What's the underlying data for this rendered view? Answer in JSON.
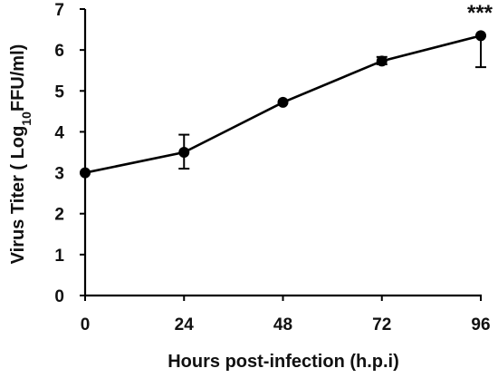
{
  "chart_data": {
    "type": "line",
    "x": [
      0,
      24,
      48,
      72,
      96
    ],
    "series": [
      {
        "values": [
          3.0,
          3.5,
          4.72,
          5.73,
          6.35
        ],
        "error_low": [
          3.0,
          3.1,
          4.72,
          5.65,
          5.58
        ],
        "error_high": [
          3.0,
          3.93,
          4.72,
          5.83,
          6.35
        ]
      }
    ],
    "xticks": [
      "0",
      "24",
      "48",
      "72",
      "96"
    ],
    "yticks": [
      "0",
      "1",
      "2",
      "3",
      "4",
      "5",
      "6",
      "7"
    ],
    "xlabel": "Hours post-infection (h.p.i)",
    "ylabel_main": "Virus Titer ( Log",
    "ylabel_sub": "10",
    "ylabel_tail": "FFU/ml)",
    "xlim": [
      0,
      96
    ],
    "ylim": [
      0,
      7
    ],
    "grid": false,
    "annotations": [
      {
        "x": 96,
        "text": "***"
      }
    ],
    "colors": {
      "line": "#000000"
    }
  }
}
